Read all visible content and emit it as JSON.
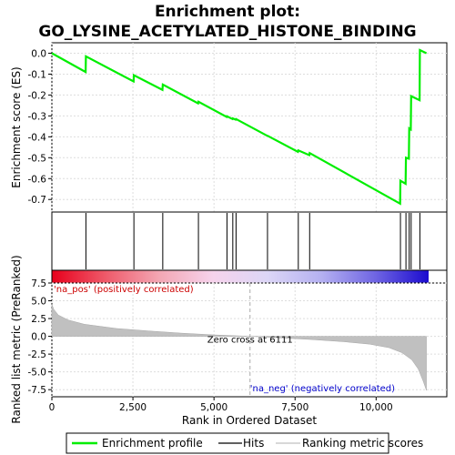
{
  "chart_data": {
    "type": "line",
    "title_line1": "Enrichment plot:",
    "title_line2": "GO_LYSINE_ACETYLATED_HISTONE_BINDING",
    "xlabel": "Rank in Ordered Dataset",
    "ylabel_top": "Enrichment score (ES)",
    "ylabel_bottom": "Ranked list metric (PreRanked)",
    "xlim": [
      0,
      12180
    ],
    "es_ylim": [
      -0.76,
      0.05
    ],
    "metric_ylim": [
      -8.5,
      7.5
    ],
    "x_ticks": [
      0,
      2500,
      5000,
      7500,
      10000
    ],
    "x_tick_labels": [
      "0",
      "2,500",
      "5,000",
      "7,500",
      "10,000"
    ],
    "es_ticks": [
      0.0,
      -0.1,
      -0.2,
      -0.3,
      -0.4,
      -0.5,
      -0.6,
      -0.7
    ],
    "es_tick_labels": [
      "0.0",
      "-0.1",
      "-0.2",
      "-0.3",
      "-0.4",
      "-0.5",
      "-0.6",
      "-0.7"
    ],
    "metric_ticks": [
      7.5,
      5.0,
      2.5,
      0.0,
      -2.5,
      -5.0,
      -7.5
    ],
    "metric_tick_labels": [
      "7.5",
      "5.0",
      "2.5",
      "0.0",
      "-2.5",
      "-5.0",
      "-7.5"
    ],
    "hits": [
      1050,
      2530,
      3420,
      4520,
      5400,
      5580,
      5680,
      6650,
      7600,
      7950,
      10750,
      10920,
      11020,
      11080,
      11350
    ],
    "es_curve": {
      "x": [
        0,
        1040,
        1050,
        2520,
        2530,
        3410,
        3420,
        4510,
        4520,
        5390,
        5400,
        5570,
        5580,
        5670,
        5680,
        6640,
        6650,
        7590,
        7600,
        7940,
        7950,
        10740,
        10750,
        10910,
        10920,
        11010,
        11020,
        11070,
        11080,
        11340,
        11350,
        11550
      ],
      "y": [
        0.0,
        -0.09,
        -0.015,
        -0.135,
        -0.105,
        -0.175,
        -0.15,
        -0.24,
        -0.232,
        -0.305,
        -0.302,
        -0.315,
        -0.312,
        -0.318,
        -0.315,
        -0.395,
        -0.395,
        -0.472,
        -0.465,
        -0.488,
        -0.478,
        -0.72,
        -0.61,
        -0.625,
        -0.5,
        -0.505,
        -0.36,
        -0.365,
        -0.205,
        -0.225,
        0.015,
        0.0
      ]
    },
    "metric_curve": {
      "x": [
        0,
        60,
        200,
        500,
        1000,
        2000,
        3000,
        4000,
        5000,
        6111,
        7000,
        8000,
        9000,
        9800,
        10400,
        10800,
        11100,
        11300,
        11450,
        11550
      ],
      "y": [
        4.5,
        3.8,
        3.0,
        2.3,
        1.7,
        1.1,
        0.75,
        0.45,
        0.2,
        0.0,
        -0.2,
        -0.45,
        -0.75,
        -1.1,
        -1.6,
        -2.3,
        -3.3,
        -4.6,
        -6.3,
        -7.6
      ]
    },
    "n_genes": 11550,
    "zero_cross_label": "Zero cross at 6111",
    "zero_cross_x": 6111,
    "pos_label": "'na_pos' (positively correlated)",
    "neg_label": "'na_neg' (negatively correlated)",
    "legend": [
      "Enrichment profile",
      "Hits",
      "Ranking metric scores"
    ],
    "colors": {
      "es_line": "#00ee00",
      "hit_line": "#000000",
      "metric_fill": "#c0c0c0",
      "pos_text": "#cc0000",
      "neg_text": "#0000cc",
      "grid": "#dddddd",
      "heat_stops": [
        "#e8001c",
        "#ef5a6a",
        "#f3a7b4",
        "#f6d3ec",
        "#dcd6f6",
        "#b5b1f1",
        "#7066e3",
        "#1b0bcf"
      ]
    }
  }
}
